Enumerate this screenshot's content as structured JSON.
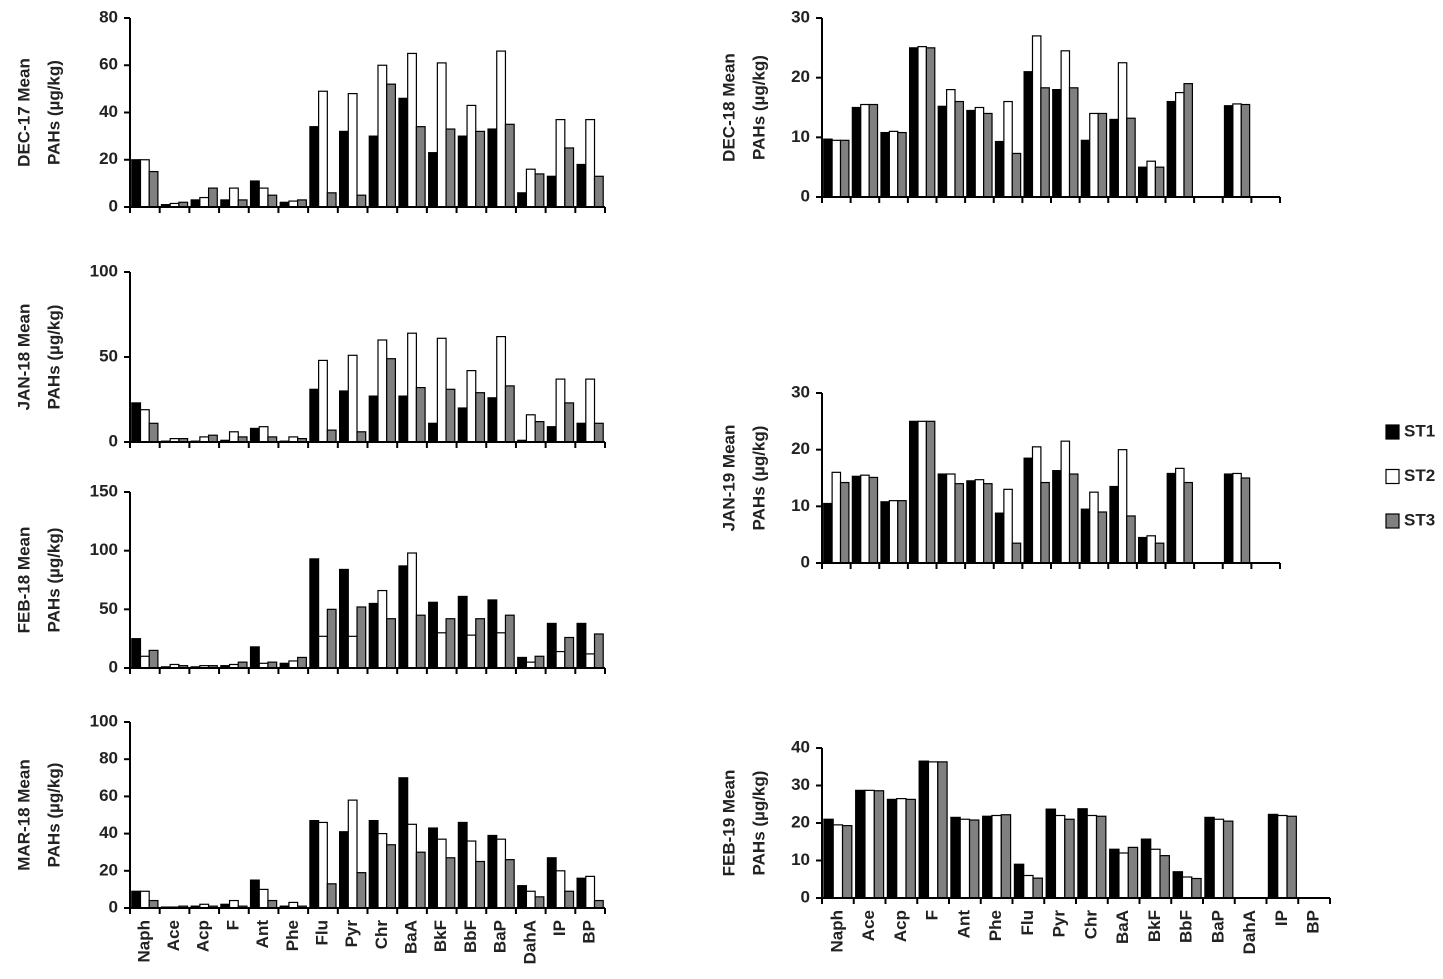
{
  "chart_data": [
    {
      "type": "bar",
      "ylabel": [
        "DEC-17 Mean",
        "PAHs (µg/kg)"
      ],
      "ylim": [
        0,
        80
      ],
      "yticks": [
        0,
        20,
        40,
        60,
        80
      ],
      "series": [
        {
          "name": "ST1",
          "color": "#000000",
          "values": [
            20,
            1,
            3,
            3,
            11,
            2,
            34,
            32,
            30,
            46,
            23,
            30,
            33,
            6,
            13,
            18
          ]
        },
        {
          "name": "ST2",
          "color": "#ffffff",
          "values": [
            20,
            1.5,
            4,
            8,
            8,
            2.5,
            49,
            48,
            60,
            65,
            61,
            43,
            66,
            16,
            37,
            37
          ]
        },
        {
          "name": "ST3",
          "color": "#808080",
          "values": [
            15,
            2,
            8,
            3,
            5,
            3,
            6,
            5,
            52,
            34,
            33,
            32,
            35,
            14,
            25,
            13
          ]
        }
      ]
    },
    {
      "type": "bar",
      "ylabel": [
        "JAN-18 Mean",
        "PAHs (µg/kg)"
      ],
      "ylim": [
        0,
        100
      ],
      "yticks": [
        0,
        50,
        100
      ],
      "series": [
        {
          "name": "ST1",
          "color": "#000000",
          "values": [
            23,
            0.5,
            0.5,
            1,
            8,
            0.5,
            31,
            30,
            27,
            27,
            11,
            20,
            26,
            1,
            9,
            11
          ]
        },
        {
          "name": "ST2",
          "color": "#ffffff",
          "values": [
            19,
            2,
            3,
            6,
            9,
            3,
            48,
            51,
            60,
            64,
            61,
            42,
            62,
            16,
            37,
            37
          ]
        },
        {
          "name": "ST3",
          "color": "#808080",
          "values": [
            11,
            2,
            4,
            3,
            3,
            2,
            7,
            6,
            49,
            32,
            31,
            29,
            33,
            12,
            23,
            11
          ]
        }
      ]
    },
    {
      "type": "bar",
      "ylabel": [
        "FEB-18 Mean",
        "PAHs (µg/kg)"
      ],
      "ylim": [
        0,
        150
      ],
      "yticks": [
        0,
        50,
        100,
        150
      ],
      "series": [
        {
          "name": "ST1",
          "color": "#000000",
          "values": [
            25,
            1,
            1,
            2,
            18,
            4,
            93,
            84,
            55,
            87,
            56,
            61,
            58,
            9,
            38,
            38
          ]
        },
        {
          "name": "ST2",
          "color": "#ffffff",
          "values": [
            10,
            3,
            2,
            3,
            4,
            6,
            27,
            27,
            66,
            98,
            30,
            28,
            30,
            5,
            14,
            12
          ]
        },
        {
          "name": "ST3",
          "color": "#808080",
          "values": [
            15,
            2,
            2,
            5,
            5,
            9,
            50,
            52,
            42,
            45,
            42,
            42,
            45,
            10,
            26,
            29
          ]
        }
      ]
    },
    {
      "type": "bar",
      "ylabel": [
        "MAR-18 Mean",
        "PAHs (µg/kg)"
      ],
      "ylim": [
        0,
        100
      ],
      "yticks": [
        0,
        20,
        40,
        60,
        80,
        100
      ],
      "categories": [
        "Naph",
        "Ace",
        "Acp",
        "F",
        "Ant",
        "Phe",
        "Flu",
        "Pyr",
        "Chr",
        "BaA",
        "BkF",
        "BbF",
        "BaP",
        "DahA",
        "IP",
        "BP"
      ],
      "series": [
        {
          "name": "ST1",
          "color": "#000000",
          "values": [
            9,
            0.5,
            1,
            2,
            15,
            1,
            47,
            41,
            47,
            70,
            43,
            46,
            39,
            12,
            27,
            16
          ]
        },
        {
          "name": "ST2",
          "color": "#ffffff",
          "values": [
            9,
            0.5,
            2,
            4,
            10,
            3,
            46,
            58,
            40,
            45,
            37,
            36,
            37,
            9,
            20,
            17
          ]
        },
        {
          "name": "ST3",
          "color": "#808080",
          "values": [
            4,
            1,
            1,
            1,
            4,
            1,
            13,
            19,
            34,
            30,
            27,
            25,
            26,
            6,
            9,
            4
          ]
        }
      ]
    },
    {
      "type": "bar",
      "ylabel": [
        "DEC-18 Mean",
        "PAHs (µg/kg)"
      ],
      "ylim": [
        0,
        30
      ],
      "yticks": [
        0,
        10,
        20,
        30
      ],
      "series": [
        {
          "name": "ST1",
          "color": "#000000",
          "values": [
            9.7,
            15,
            10.8,
            25,
            15.2,
            14.5,
            9.3,
            21,
            18,
            9.5,
            13,
            5,
            16,
            null,
            15.3,
            null
          ]
        },
        {
          "name": "ST2",
          "color": "#ffffff",
          "values": [
            9.5,
            15.5,
            11,
            25.2,
            18,
            15,
            16,
            27,
            24.5,
            14,
            22.5,
            6,
            17.5,
            null,
            15.6,
            null
          ]
        },
        {
          "name": "ST3",
          "color": "#808080",
          "values": [
            9.5,
            15.5,
            10.8,
            25,
            16,
            14,
            7.3,
            18.3,
            18.3,
            14,
            13.2,
            5,
            19,
            null,
            15.5,
            null
          ]
        }
      ]
    },
    {
      "type": "bar",
      "ylabel": [
        "JAN-19 Mean",
        "PAHs (µg/kg)"
      ],
      "ylim": [
        0,
        30
      ],
      "yticks": [
        0,
        10,
        20,
        30
      ],
      "series": [
        {
          "name": "ST1",
          "color": "#000000",
          "values": [
            10.5,
            15.3,
            10.8,
            25,
            15.7,
            14.5,
            8.8,
            18.5,
            16.3,
            9.5,
            13.5,
            4.5,
            15.8,
            null,
            15.7,
            null
          ]
        },
        {
          "name": "ST2",
          "color": "#ffffff",
          "values": [
            16,
            15.5,
            11,
            25,
            15.7,
            14.7,
            13,
            20.5,
            21.5,
            12.5,
            20,
            4.8,
            16.7,
            null,
            15.8,
            null
          ]
        },
        {
          "name": "ST3",
          "color": "#808080",
          "values": [
            14.2,
            15.1,
            11,
            25,
            14,
            14,
            3.5,
            14.2,
            15.7,
            9,
            8.3,
            3.5,
            14.2,
            null,
            15,
            null
          ]
        }
      ]
    },
    {
      "type": "bar",
      "ylabel": [
        "FEB-19 Mean",
        "PAHs (µg/kg)"
      ],
      "ylim": [
        0,
        40
      ],
      "yticks": [
        0,
        10,
        20,
        30,
        40
      ],
      "categories": [
        "Naph",
        "Ace",
        "Acp",
        "F",
        "Ant",
        "Phe",
        "Flu",
        "Pyr",
        "Chr",
        "BaA",
        "BkF",
        "BbF",
        "BaP",
        "DahA",
        "IP",
        "BP"
      ],
      "series": [
        {
          "name": "ST1",
          "color": "#000000",
          "values": [
            21,
            28.7,
            26.3,
            36.5,
            21.5,
            21.8,
            9,
            23.7,
            23.8,
            13,
            15.7,
            7,
            21.5,
            null,
            22.3,
            null
          ]
        },
        {
          "name": "ST2",
          "color": "#ffffff",
          "values": [
            19.5,
            28.7,
            26.5,
            36.3,
            21,
            22,
            6,
            22,
            22,
            12,
            13,
            5.6,
            21,
            null,
            22,
            null
          ]
        },
        {
          "name": "ST3",
          "color": "#808080",
          "values": [
            19.3,
            28.6,
            26.3,
            36.3,
            20.8,
            22.2,
            5.3,
            21,
            21.8,
            13.5,
            11.3,
            5.2,
            20.5,
            null,
            21.8,
            null
          ]
        }
      ]
    }
  ]
}
